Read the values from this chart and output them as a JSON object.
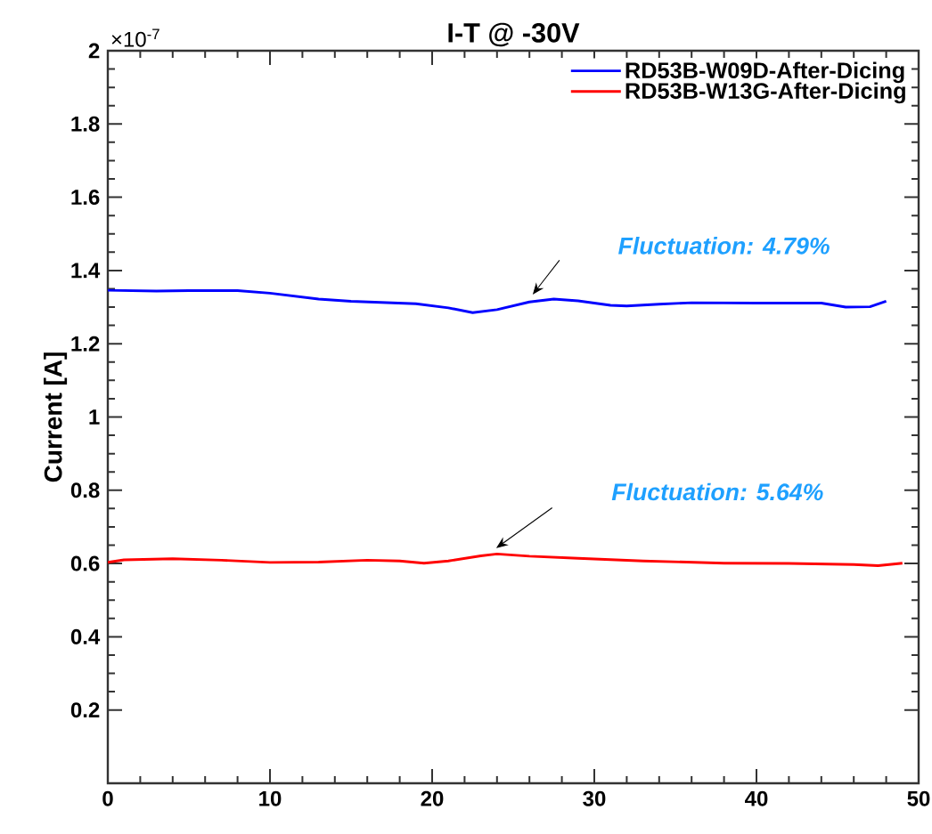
{
  "chart_data": {
    "type": "line",
    "title": "I-T @ -30V",
    "ylabel": "Current [A]",
    "annotations": [
      "Fluctuation: 4.79%",
      "Fluctuation: 5.64%",
      "×10$^{-7}$"
    ],
    "series": [
      {
        "name": "RD53B-W09D-After-Dicing",
        "color": "#0000ff",
        "x": [
          0,
          3,
          5,
          8,
          10,
          13,
          15,
          19,
          21,
          22.5,
          24,
          26,
          27.5,
          29,
          31,
          32,
          34,
          36,
          40,
          44,
          45.5,
          47,
          48
        ],
        "values": [
          1.346,
          1.344,
          1.345,
          1.345,
          1.338,
          1.322,
          1.316,
          1.309,
          1.298,
          1.285,
          1.293,
          1.314,
          1.322,
          1.317,
          1.305,
          1.303,
          1.308,
          1.312,
          1.311,
          1.311,
          1.3,
          1.301,
          1.316
        ]
      },
      {
        "name": "RD53B-W13G-After-Dicing",
        "color": "#ff0000",
        "x": [
          0,
          1,
          4,
          7,
          10,
          13,
          16,
          18,
          19.5,
          21,
          23,
          24,
          26,
          29,
          33,
          38,
          42,
          46,
          47.5,
          49
        ],
        "values": [
          0.603,
          0.61,
          0.613,
          0.609,
          0.603,
          0.604,
          0.609,
          0.607,
          0.601,
          0.607,
          0.621,
          0.626,
          0.62,
          0.614,
          0.607,
          0.601,
          0.6,
          0.597,
          0.594,
          0.601
        ]
      }
    ],
    "xlim": [
      0,
      50
    ],
    "xticks": [
      0,
      10,
      20,
      30,
      40,
      50
    ],
    "ylim": [
      0,
      2
    ],
    "yticks": [
      0.2,
      0.4,
      0.6,
      0.8,
      1,
      1.2,
      1.4,
      1.6,
      1.8,
      2
    ],
    "legend": "top right",
    "grid": false,
    "marker": "none",
    "line_style": "solid"
  }
}
